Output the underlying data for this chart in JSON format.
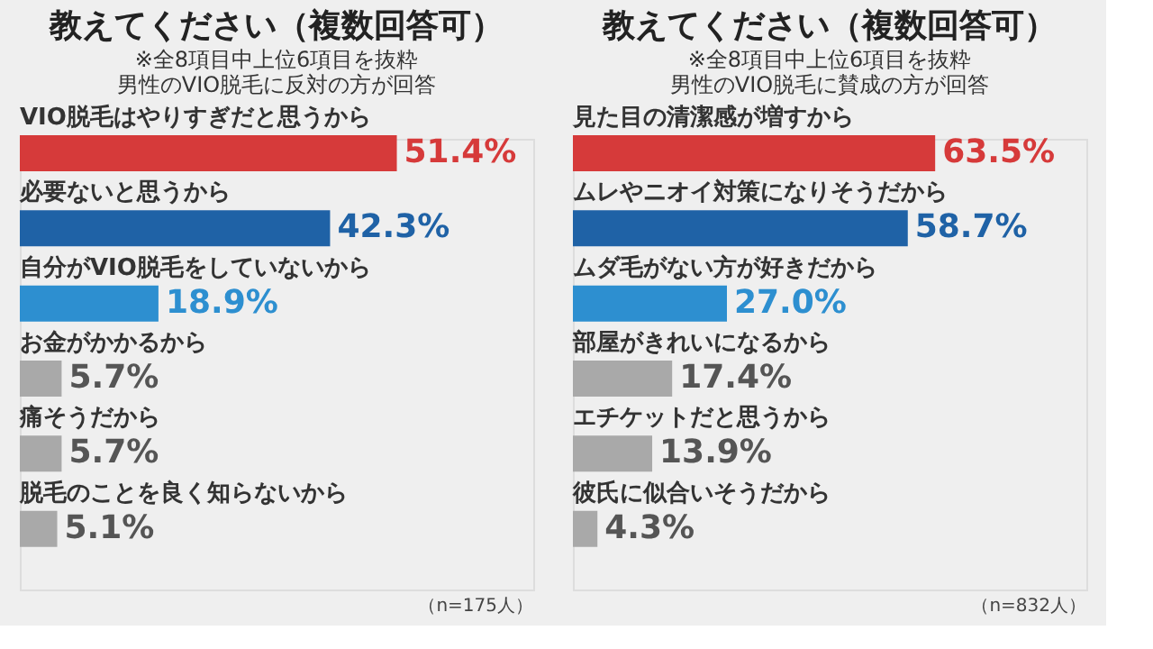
{
  "chart_data": [
    {
      "type": "bar",
      "orientation": "horizontal",
      "title": "教えてください（複数回答可）",
      "subtitle": "男性のVIO脱毛に反対の方が回答",
      "categories": [
        "VIO脱毛はやりすぎだと思うから",
        "必要ないと思うから",
        "自分がVIO脱毛をしていないから",
        "お金がかかるから",
        "痛そうだから",
        "脱毛のことを良く知らないから"
      ],
      "values": [
        51.4,
        42.3,
        18.9,
        5.7,
        5.7,
        5.1
      ],
      "value_labels": [
        "51.4%",
        "42.3%",
        "18.9%",
        "5.7%",
        "5.7%",
        "5.1%"
      ],
      "colors": [
        "#d63a3a",
        "#1f62a6",
        "#2d8fd0",
        "#a9a9a9",
        "#a9a9a9",
        "#a9a9a9"
      ],
      "xlim": [
        0,
        70
      ],
      "annotations": [
        "※全8項目中上位6項目を抜粋",
        "（n=175人）"
      ]
    },
    {
      "type": "bar",
      "orientation": "horizontal",
      "title": "教えてください（複数回答可）",
      "subtitle": "男性のVIO脱毛に賛成の方が回答",
      "categories": [
        "見た目の清潔感が増すから",
        "ムレやニオイ対策になりそうだから",
        "ムダ毛がない方が好きだから",
        "部屋がきれいになるから",
        "エチケットだと思うから",
        "彼氏に似合いそうだから"
      ],
      "values": [
        63.5,
        58.7,
        27.0,
        17.4,
        13.9,
        4.3
      ],
      "value_labels": [
        "63.5%",
        "58.7%",
        "27.0%",
        "17.4%",
        "13.9%",
        "4.3%"
      ],
      "colors": [
        "#d63a3a",
        "#1f62a6",
        "#2d8fd0",
        "#a9a9a9",
        "#a9a9a9",
        "#a9a9a9"
      ],
      "xlim": [
        0,
        90
      ],
      "annotations": [
        "※全8項目中上位6項目を抜粋",
        "（n=832人）"
      ]
    }
  ]
}
